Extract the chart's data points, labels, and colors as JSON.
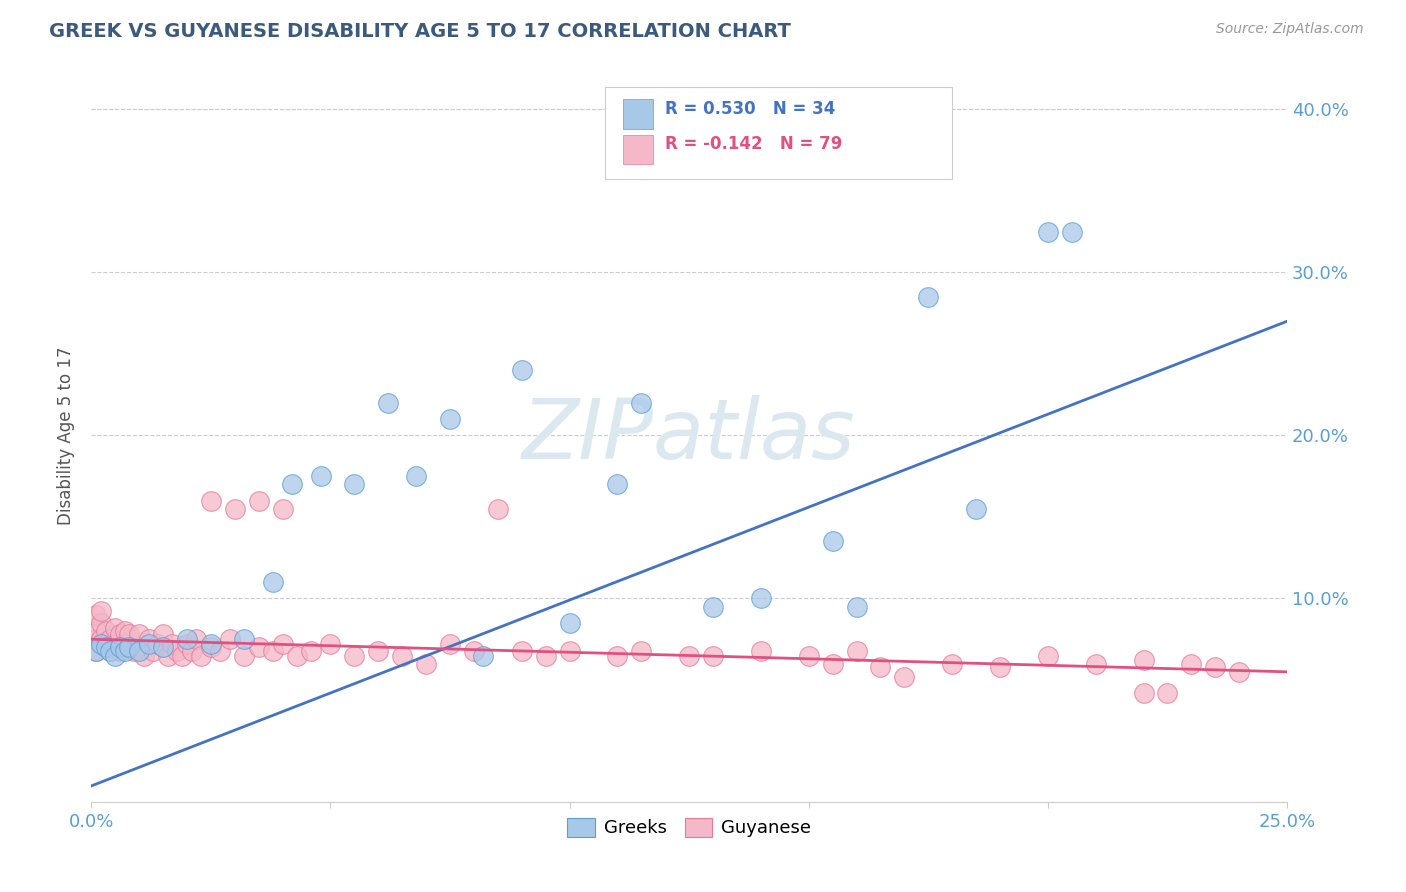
{
  "title": "GREEK VS GUYANESE DISABILITY AGE 5 TO 17 CORRELATION CHART",
  "source": "Source: ZipAtlas.com",
  "ylabel": "Disability Age 5 to 17",
  "xlim": [
    0.0,
    0.25
  ],
  "ylim": [
    -0.025,
    0.425
  ],
  "plot_ylim": [
    -0.025,
    0.425
  ],
  "xtick_positions": [
    0.0,
    0.05,
    0.1,
    0.15,
    0.2,
    0.25
  ],
  "xtick_labels": [
    "0.0%",
    "",
    "",
    "",
    "",
    "25.0%"
  ],
  "ytick_positions": [
    0.0,
    0.1,
    0.2,
    0.3,
    0.4
  ],
  "ytick_labels": [
    "",
    "10.0%",
    "20.0%",
    "30.0%",
    "40.0%"
  ],
  "greek_color": "#a8c8e8",
  "greek_edge_color": "#5a9fd4",
  "guyanese_color": "#f4b8c8",
  "guyanese_edge_color": "#e87898",
  "greek_line_color": "#4472c4",
  "guyanese_line_color": "#e05080",
  "legend_text_greek_color": "#4472c4",
  "legend_text_guyanese_color": "#e05080",
  "title_color": "#3c5a7d",
  "axis_tick_color": "#5a9fd4",
  "source_color": "#999999",
  "ylabel_color": "#555555",
  "watermark_color": "#dce8f0",
  "greek_line_x0": 0.0,
  "greek_line_y0": -0.015,
  "greek_line_x1": 0.25,
  "greek_line_y1": 0.27,
  "guyanese_line_x0": 0.0,
  "guyanese_line_y0": 0.075,
  "guyanese_line_x1": 0.25,
  "guyanese_line_y1": 0.055,
  "greek_x": [
    0.001,
    0.002,
    0.003,
    0.004,
    0.005,
    0.006,
    0.007,
    0.008,
    0.01,
    0.012,
    0.015,
    0.02,
    0.025,
    0.032,
    0.038,
    0.042,
    0.048,
    0.055,
    0.062,
    0.068,
    0.075,
    0.082,
    0.09,
    0.1,
    0.11,
    0.115,
    0.13,
    0.14,
    0.155,
    0.16,
    0.175,
    0.185,
    0.2,
    0.205
  ],
  "greek_y": [
    0.068,
    0.072,
    0.07,
    0.068,
    0.065,
    0.07,
    0.068,
    0.07,
    0.068,
    0.072,
    0.07,
    0.075,
    0.072,
    0.075,
    0.11,
    0.17,
    0.175,
    0.17,
    0.22,
    0.175,
    0.21,
    0.065,
    0.24,
    0.085,
    0.17,
    0.22,
    0.095,
    0.1,
    0.135,
    0.095,
    0.285,
    0.155,
    0.325,
    0.325
  ],
  "guyanese_x": [
    0.001,
    0.001,
    0.001,
    0.001,
    0.002,
    0.002,
    0.002,
    0.003,
    0.003,
    0.004,
    0.004,
    0.005,
    0.005,
    0.006,
    0.006,
    0.007,
    0.007,
    0.008,
    0.008,
    0.009,
    0.01,
    0.01,
    0.011,
    0.012,
    0.013,
    0.014,
    0.015,
    0.016,
    0.017,
    0.018,
    0.019,
    0.02,
    0.021,
    0.022,
    0.023,
    0.025,
    0.027,
    0.029,
    0.032,
    0.035,
    0.038,
    0.04,
    0.043,
    0.046,
    0.05,
    0.055,
    0.06,
    0.065,
    0.07,
    0.075,
    0.08,
    0.085,
    0.09,
    0.095,
    0.1,
    0.11,
    0.115,
    0.125,
    0.13,
    0.14,
    0.15,
    0.155,
    0.16,
    0.165,
    0.17,
    0.18,
    0.19,
    0.2,
    0.21,
    0.22,
    0.22,
    0.225,
    0.23,
    0.235,
    0.24,
    0.025,
    0.03,
    0.035,
    0.04
  ],
  "guyanese_y": [
    0.068,
    0.075,
    0.08,
    0.09,
    0.075,
    0.085,
    0.092,
    0.07,
    0.08,
    0.068,
    0.075,
    0.072,
    0.082,
    0.068,
    0.078,
    0.072,
    0.08,
    0.07,
    0.078,
    0.068,
    0.07,
    0.078,
    0.065,
    0.075,
    0.068,
    0.072,
    0.078,
    0.065,
    0.072,
    0.068,
    0.065,
    0.072,
    0.068,
    0.075,
    0.065,
    0.07,
    0.068,
    0.075,
    0.065,
    0.07,
    0.068,
    0.072,
    0.065,
    0.068,
    0.072,
    0.065,
    0.068,
    0.065,
    0.06,
    0.072,
    0.068,
    0.155,
    0.068,
    0.065,
    0.068,
    0.065,
    0.068,
    0.065,
    0.065,
    0.068,
    0.065,
    0.06,
    0.068,
    0.058,
    0.052,
    0.06,
    0.058,
    0.065,
    0.06,
    0.042,
    0.062,
    0.042,
    0.06,
    0.058,
    0.055,
    0.16,
    0.155,
    0.16,
    0.155
  ]
}
